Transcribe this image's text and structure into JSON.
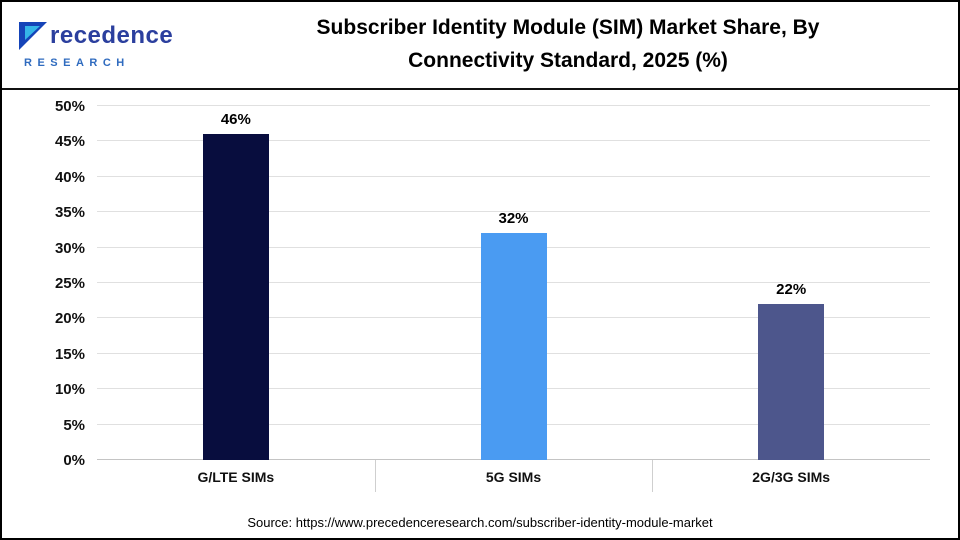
{
  "logo": {
    "name_rest": "recedence",
    "subtitle": "RESEARCH"
  },
  "header": {
    "title_line1": "Subscriber Identity Module (SIM) Market Share, By",
    "title_line2": "Connectivity Standard, 2025 (%)"
  },
  "source": "Source: https://www.precedenceresearch.com/subscriber-identity-module-market",
  "chart_data": {
    "type": "bar",
    "title": "Subscriber Identity Module (SIM) Market Share, By Connectivity Standard, 2025 (%)",
    "categories": [
      "G/LTE SIMs",
      "5G SIMs",
      "2G/3G SIMs"
    ],
    "values": [
      46,
      32,
      22
    ],
    "value_labels": [
      "46%",
      "32%",
      "22%"
    ],
    "bar_colors": [
      "#080d3e",
      "#4a9bf2",
      "#4d568c"
    ],
    "ylim": [
      0,
      50
    ],
    "ytick_step": 5,
    "ytick_labels": [
      "0%",
      "5%",
      "10%",
      "15%",
      "20%",
      "25%",
      "30%",
      "35%",
      "40%",
      "45%",
      "50%"
    ],
    "grid": true,
    "legend": false,
    "xlabel": "",
    "ylabel": ""
  }
}
